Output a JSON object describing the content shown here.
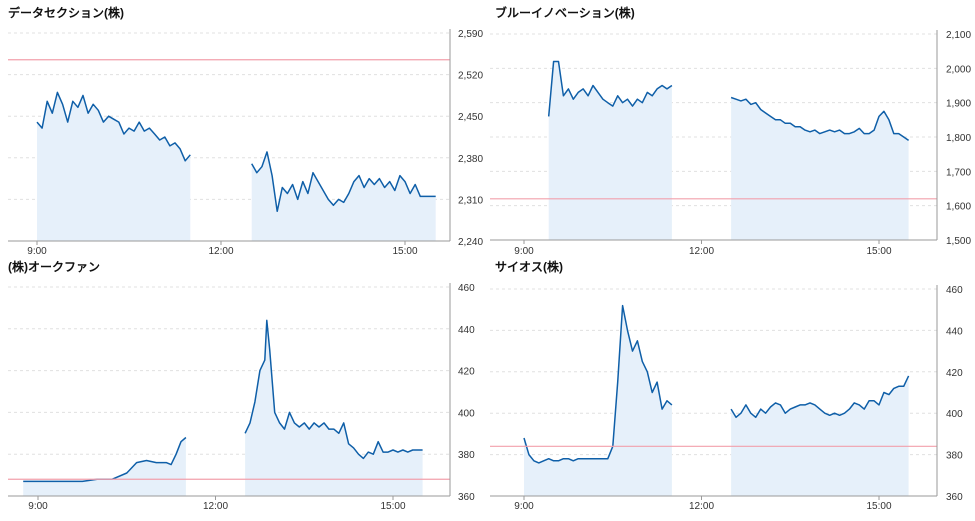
{
  "chart_data": [
    {
      "type": "area",
      "title": "データセクション(株)",
      "x_ticks": [
        "9:00",
        "12:00",
        "15:00"
      ],
      "y_ticks": [
        "2,590",
        "2,520",
        "2,450",
        "2,380",
        "2,310",
        "2,240"
      ],
      "ylim": [
        2240,
        2590
      ],
      "reference_line": 2545,
      "grid": "horizontal-dashed",
      "y_axis_side": "right",
      "segments": [
        {
          "session": "morning",
          "x": [
            "9:00",
            "9:05",
            "9:10",
            "9:15",
            "9:20",
            "9:25",
            "9:30",
            "9:35",
            "9:40",
            "9:45",
            "9:50",
            "9:55",
            "10:00",
            "10:05",
            "10:10",
            "10:15",
            "10:20",
            "10:25",
            "10:30",
            "10:35",
            "10:40",
            "10:45",
            "10:50",
            "10:55",
            "11:00",
            "11:05",
            "11:10",
            "11:15",
            "11:20",
            "11:25",
            "11:30"
          ],
          "values": [
            2440,
            2430,
            2475,
            2455,
            2490,
            2470,
            2440,
            2475,
            2465,
            2485,
            2455,
            2470,
            2460,
            2440,
            2450,
            2445,
            2440,
            2420,
            2430,
            2425,
            2440,
            2425,
            2430,
            2420,
            2410,
            2415,
            2400,
            2405,
            2395,
            2375,
            2385
          ]
        },
        {
          "session": "afternoon",
          "x": [
            "12:30",
            "12:35",
            "12:40",
            "12:45",
            "12:50",
            "12:55",
            "13:00",
            "13:05",
            "13:10",
            "13:15",
            "13:20",
            "13:25",
            "13:30",
            "13:35",
            "13:40",
            "13:45",
            "13:50",
            "13:55",
            "14:00",
            "14:05",
            "14:10",
            "14:15",
            "14:20",
            "14:25",
            "14:30",
            "14:35",
            "14:40",
            "14:45",
            "14:50",
            "14:55",
            "15:00",
            "15:05",
            "15:10",
            "15:15",
            "15:20",
            "15:25",
            "15:30"
          ],
          "values": [
            2370,
            2355,
            2365,
            2390,
            2350,
            2290,
            2330,
            2320,
            2335,
            2310,
            2340,
            2320,
            2355,
            2340,
            2325,
            2310,
            2300,
            2310,
            2305,
            2320,
            2340,
            2350,
            2330,
            2345,
            2335,
            2345,
            2330,
            2340,
            2325,
            2350,
            2340,
            2320,
            2335,
            2315,
            2315,
            2315,
            2315
          ]
        }
      ]
    },
    {
      "type": "area",
      "title": "ブルーイノベーション(株)",
      "x_ticks": [
        "9:00",
        "12:00",
        "15:00"
      ],
      "y_ticks": [
        "2,100",
        "2,000",
        "1,900",
        "1,800",
        "1,700",
        "1,600",
        "1,500"
      ],
      "ylim": [
        1500,
        2100
      ],
      "reference_line": 1620,
      "grid": "horizontal-dashed",
      "y_axis_side": "right",
      "segments": [
        {
          "session": "morning",
          "x": [
            "9:25",
            "9:30",
            "9:35",
            "9:40",
            "9:45",
            "9:50",
            "9:55",
            "10:00",
            "10:05",
            "10:10",
            "10:15",
            "10:20",
            "10:25",
            "10:30",
            "10:35",
            "10:40",
            "10:45",
            "10:50",
            "10:55",
            "11:00",
            "11:05",
            "11:10",
            "11:15",
            "11:20",
            "11:25",
            "11:30"
          ],
          "values": [
            1860,
            2020,
            2020,
            1920,
            1940,
            1910,
            1930,
            1940,
            1920,
            1950,
            1930,
            1910,
            1900,
            1890,
            1920,
            1900,
            1910,
            1890,
            1910,
            1900,
            1930,
            1920,
            1940,
            1950,
            1940,
            1950
          ]
        },
        {
          "session": "afternoon",
          "x": [
            "12:30",
            "12:35",
            "12:40",
            "12:45",
            "12:50",
            "12:55",
            "13:00",
            "13:05",
            "13:10",
            "13:15",
            "13:20",
            "13:25",
            "13:30",
            "13:35",
            "13:40",
            "13:45",
            "13:50",
            "13:55",
            "14:00",
            "14:05",
            "14:10",
            "14:15",
            "14:20",
            "14:25",
            "14:30",
            "14:35",
            "14:40",
            "14:45",
            "14:50",
            "14:55",
            "15:00",
            "15:05",
            "15:10",
            "15:15",
            "15:20",
            "15:25",
            "15:30"
          ],
          "values": [
            1915,
            1910,
            1905,
            1910,
            1895,
            1900,
            1880,
            1870,
            1860,
            1850,
            1850,
            1840,
            1840,
            1830,
            1830,
            1820,
            1815,
            1820,
            1810,
            1815,
            1820,
            1815,
            1820,
            1810,
            1810,
            1815,
            1825,
            1810,
            1810,
            1820,
            1860,
            1875,
            1850,
            1810,
            1810,
            1800,
            1790
          ]
        }
      ]
    },
    {
      "type": "area",
      "title": "(株)オークファン",
      "x_ticks": [
        "9:00",
        "12:00",
        "15:00"
      ],
      "y_ticks": [
        "460",
        "440",
        "420",
        "400",
        "380",
        "360"
      ],
      "ylim": [
        360,
        460
      ],
      "reference_line": 368,
      "grid": "horizontal-dashed",
      "y_axis_side": "right",
      "segments": [
        {
          "session": "morning",
          "x": [
            "8:45",
            "9:00",
            "9:15",
            "9:30",
            "9:45",
            "10:00",
            "10:15",
            "10:30",
            "10:40",
            "10:50",
            "11:00",
            "11:10",
            "11:15",
            "11:20",
            "11:25",
            "11:30"
          ],
          "values": [
            367,
            367,
            367,
            367,
            367,
            368,
            368,
            371,
            376,
            377,
            376,
            376,
            375,
            380,
            386,
            388
          ]
        },
        {
          "session": "afternoon",
          "x": [
            "12:30",
            "12:35",
            "12:40",
            "12:45",
            "12:50",
            "12:52",
            "12:55",
            "13:00",
            "13:05",
            "13:10",
            "13:15",
            "13:20",
            "13:25",
            "13:30",
            "13:35",
            "13:40",
            "13:45",
            "13:50",
            "13:55",
            "14:00",
            "14:05",
            "14:10",
            "14:15",
            "14:20",
            "14:25",
            "14:30",
            "14:35",
            "14:40",
            "14:45",
            "14:50",
            "14:55",
            "15:00",
            "15:05",
            "15:10",
            "15:15",
            "15:20",
            "15:25",
            "15:30"
          ],
          "values": [
            390,
            395,
            405,
            420,
            425,
            444,
            430,
            400,
            395,
            392,
            400,
            395,
            393,
            395,
            392,
            395,
            393,
            395,
            392,
            392,
            390,
            395,
            385,
            383,
            380,
            378,
            381,
            380,
            386,
            381,
            381,
            382,
            381,
            382,
            381,
            382,
            382,
            382
          ]
        }
      ]
    },
    {
      "type": "area",
      "title": "サイオス(株)",
      "x_ticks": [
        "9:00",
        "12:00",
        "15:00"
      ],
      "y_ticks": [
        "460",
        "440",
        "420",
        "400",
        "380",
        "360"
      ],
      "ylim": [
        360,
        460
      ],
      "reference_line": 384,
      "grid": "horizontal-dashed",
      "y_axis_side": "right",
      "segments": [
        {
          "session": "morning",
          "x": [
            "9:00",
            "9:05",
            "9:10",
            "9:15",
            "9:20",
            "9:25",
            "9:30",
            "9:35",
            "9:40",
            "9:45",
            "9:50",
            "9:55",
            "10:00",
            "10:05",
            "10:10",
            "10:15",
            "10:20",
            "10:25",
            "10:30",
            "10:35",
            "10:40",
            "10:45",
            "10:50",
            "10:55",
            "11:00",
            "11:05",
            "11:10",
            "11:15",
            "11:20",
            "11:25",
            "11:30"
          ],
          "values": [
            388,
            380,
            377,
            376,
            377,
            378,
            377,
            377,
            378,
            378,
            377,
            378,
            378,
            378,
            378,
            378,
            378,
            378,
            384,
            415,
            452,
            440,
            430,
            435,
            425,
            420,
            410,
            415,
            402,
            406,
            404
          ]
        },
        {
          "session": "afternoon",
          "x": [
            "12:30",
            "12:35",
            "12:40",
            "12:45",
            "12:50",
            "12:55",
            "13:00",
            "13:05",
            "13:10",
            "13:15",
            "13:20",
            "13:25",
            "13:30",
            "13:35",
            "13:40",
            "13:45",
            "13:50",
            "13:55",
            "14:00",
            "14:05",
            "14:10",
            "14:15",
            "14:20",
            "14:25",
            "14:30",
            "14:35",
            "14:40",
            "14:45",
            "14:50",
            "14:55",
            "15:00",
            "15:05",
            "15:10",
            "15:15",
            "15:20",
            "15:25",
            "15:30"
          ],
          "values": [
            402,
            398,
            400,
            404,
            400,
            398,
            402,
            400,
            403,
            405,
            404,
            400,
            402,
            403,
            404,
            404,
            405,
            404,
            402,
            400,
            399,
            400,
            399,
            400,
            402,
            405,
            404,
            402,
            406,
            406,
            404,
            410,
            409,
            412,
            413,
            413,
            418
          ]
        }
      ]
    }
  ],
  "colors": {
    "line": "#0f5fa8",
    "fill": "#e6f0fa",
    "reference_line": "#f2a0ac",
    "grid": "#e0e0e0",
    "axis": "#9a9a9a",
    "text": "#333333",
    "title": "#111111"
  }
}
